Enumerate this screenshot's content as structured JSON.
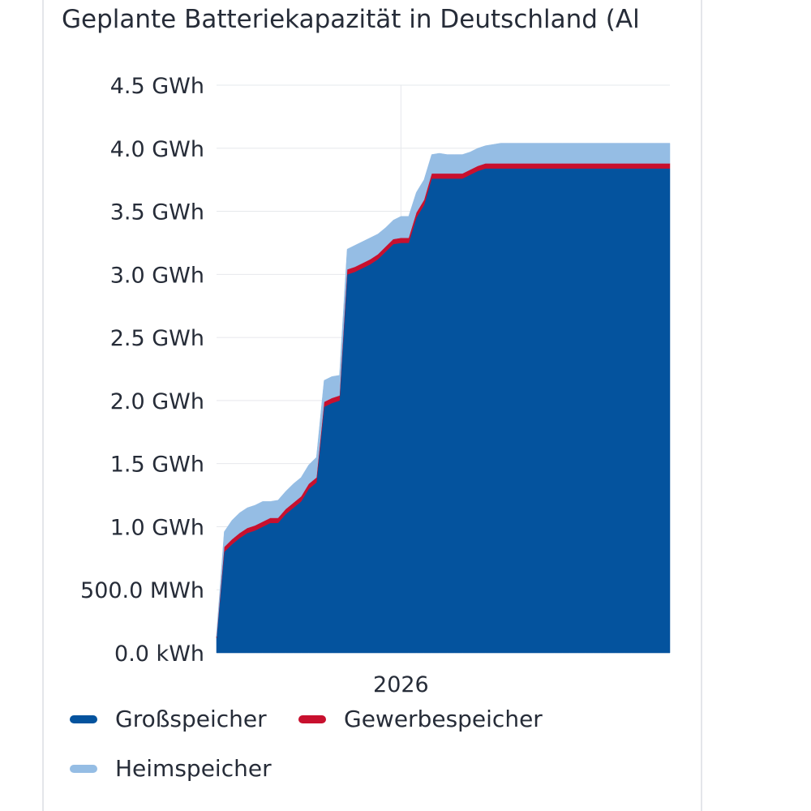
{
  "chart_data": {
    "type": "area",
    "stacked": true,
    "title": "Geplante Batteriekapazität in Deutschland (Al",
    "x_tick_labels": [
      "2026"
    ],
    "y_tick_labels": [
      "0.0 kWh",
      "500.0 MWh",
      "1.0 GWh",
      "1.5 GWh",
      "2.0 GWh",
      "2.5 GWh",
      "3.0 GWh",
      "3.5 GWh",
      "4.0 GWh",
      "4.5 GWh"
    ],
    "ylim": [
      0,
      4.5
    ],
    "y_unit": "GWh",
    "grid": true,
    "legend_position": "bottom",
    "x": [
      "2025-01",
      "2025-01",
      "2025-02",
      "2025-02",
      "2025-03",
      "2025-03",
      "2025-04",
      "2025-04",
      "2025-05",
      "2025-05",
      "2025-06",
      "2025-06",
      "2025-07",
      "2025-07",
      "2025-08",
      "2025-08",
      "2025-09",
      "2025-09",
      "2025-10",
      "2025-10",
      "2025-11",
      "2025-11",
      "2025-12",
      "2025-12",
      "2026-01",
      "2026-01",
      "2026-02",
      "2026-02",
      "2026-03",
      "2026-03",
      "2026-04",
      "2026-04",
      "2026-05",
      "2026-05",
      "2026-06",
      "2026-06",
      "2026-07",
      "2026-07",
      "2026-08",
      "2026-08",
      "2026-09",
      "2026-09",
      "2026-10",
      "2026-10",
      "2026-11",
      "2026-11",
      "2026-12",
      "2026-12",
      "2027-01",
      "2027-01",
      "2027-02",
      "2027-02",
      "2027-03",
      "2027-03",
      "2027-04",
      "2027-04",
      "2027-05",
      "2027-05",
      "2027-06",
      "2027-06"
    ],
    "series": [
      {
        "name": "Großspeicher",
        "color": "#04539e",
        "values": [
          0.12,
          0.8,
          0.86,
          0.91,
          0.95,
          0.97,
          1.0,
          1.03,
          1.03,
          1.1,
          1.15,
          1.2,
          1.3,
          1.35,
          1.95,
          1.98,
          2.0,
          3.0,
          3.02,
          3.05,
          3.08,
          3.12,
          3.18,
          3.24,
          3.25,
          3.25,
          3.45,
          3.55,
          3.76,
          3.76,
          3.76,
          3.76,
          3.76,
          3.79,
          3.82,
          3.84,
          3.84,
          3.84,
          3.84,
          3.84,
          3.84,
          3.84,
          3.84,
          3.84,
          3.84,
          3.84,
          3.84,
          3.84,
          3.84,
          3.84,
          3.84,
          3.84,
          3.84,
          3.84,
          3.84,
          3.84,
          3.84,
          3.84,
          3.84,
          3.84
        ]
      },
      {
        "name": "Gewerbespeicher",
        "color": "#c8102e",
        "values": [
          0.01,
          0.04,
          0.04,
          0.04,
          0.04,
          0.04,
          0.04,
          0.04,
          0.04,
          0.04,
          0.04,
          0.04,
          0.04,
          0.04,
          0.04,
          0.04,
          0.04,
          0.04,
          0.04,
          0.04,
          0.04,
          0.04,
          0.04,
          0.04,
          0.04,
          0.04,
          0.04,
          0.04,
          0.04,
          0.04,
          0.04,
          0.04,
          0.04,
          0.04,
          0.04,
          0.04,
          0.04,
          0.04,
          0.04,
          0.04,
          0.04,
          0.04,
          0.04,
          0.04,
          0.04,
          0.04,
          0.04,
          0.04,
          0.04,
          0.04,
          0.04,
          0.04,
          0.04,
          0.04,
          0.04,
          0.04,
          0.04,
          0.04,
          0.04,
          0.04
        ]
      },
      {
        "name": "Heimspeicher",
        "color": "#95bde4",
        "values": [
          0.02,
          0.12,
          0.15,
          0.16,
          0.16,
          0.16,
          0.16,
          0.13,
          0.14,
          0.14,
          0.15,
          0.15,
          0.15,
          0.16,
          0.17,
          0.17,
          0.16,
          0.16,
          0.17,
          0.17,
          0.17,
          0.16,
          0.15,
          0.15,
          0.17,
          0.17,
          0.16,
          0.16,
          0.15,
          0.16,
          0.15,
          0.15,
          0.15,
          0.14,
          0.14,
          0.14,
          0.15,
          0.16,
          0.16,
          0.16,
          0.16,
          0.16,
          0.16,
          0.16,
          0.16,
          0.16,
          0.16,
          0.16,
          0.16,
          0.16,
          0.16,
          0.16,
          0.16,
          0.16,
          0.16,
          0.16,
          0.16,
          0.16,
          0.16,
          0.16
        ]
      }
    ]
  }
}
